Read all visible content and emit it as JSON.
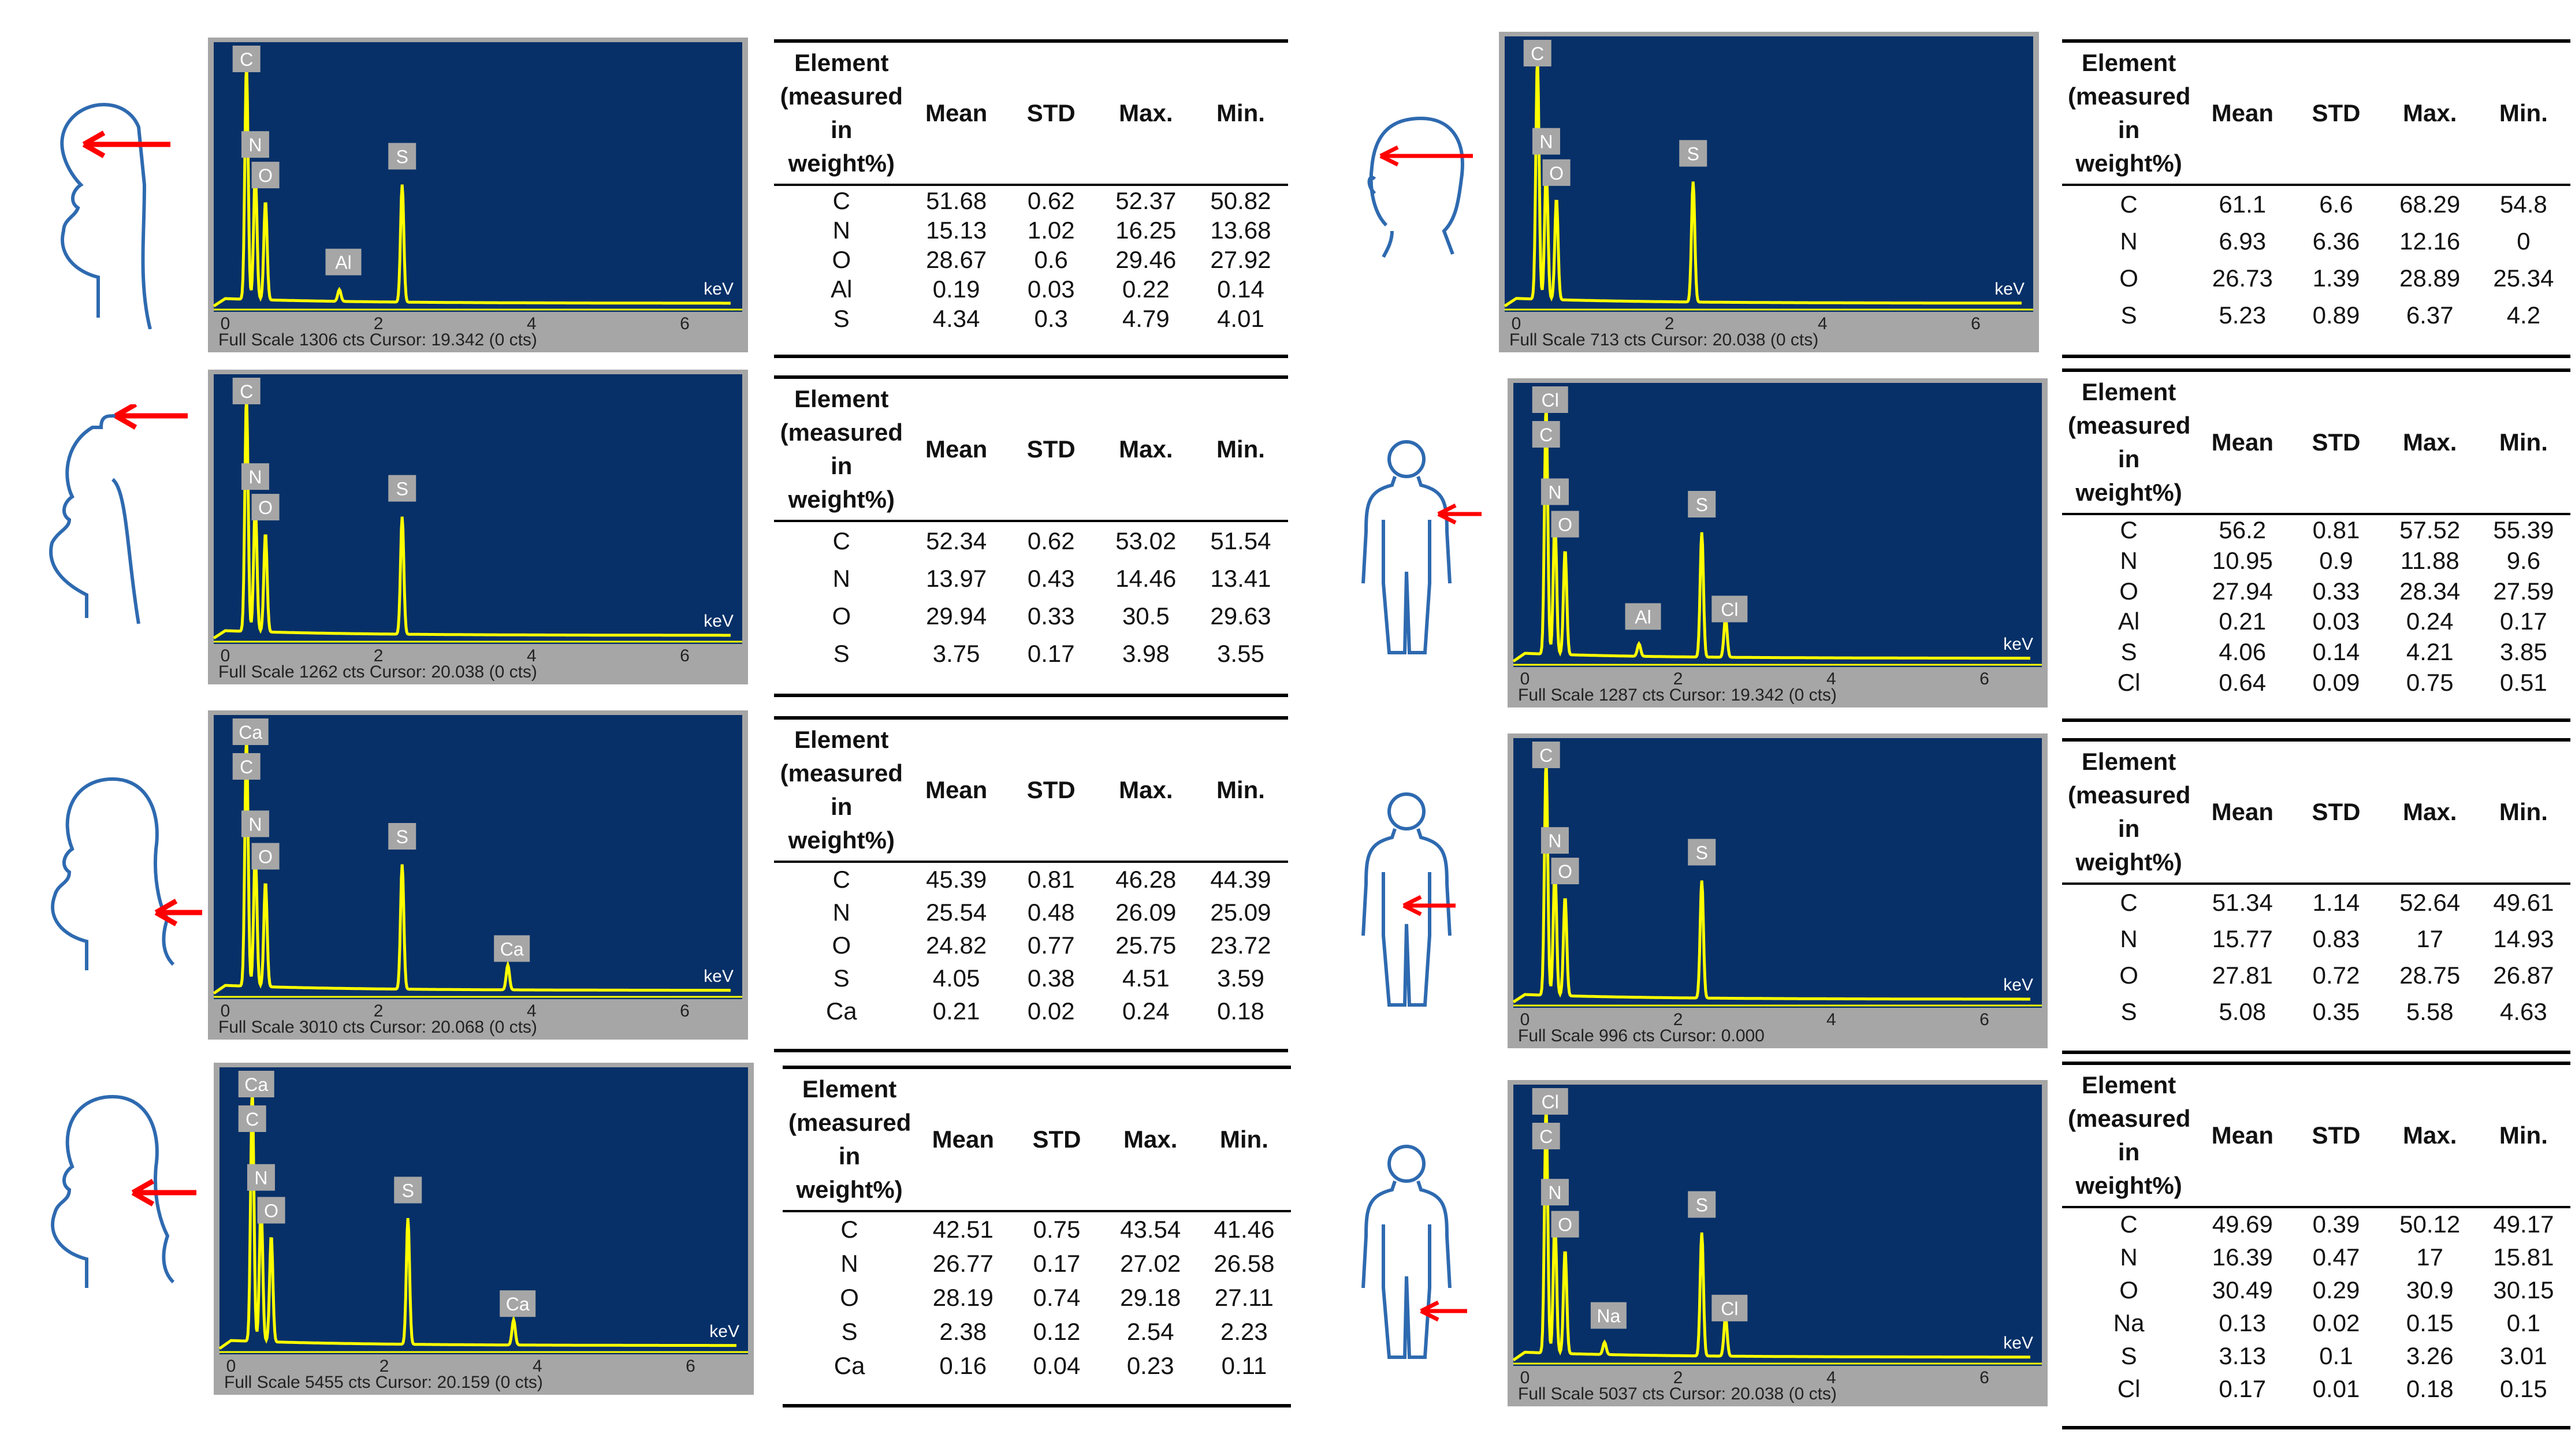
{
  "columns": [
    "Element (measured in weight%)",
    "Mean",
    "STD",
    "Max.",
    "Min."
  ],
  "panels": [
    {
      "spectrum": {
        "footer": "Full Scale 1306 cts Cursor: 19.342  (0 cts)",
        "unit": "keV",
        "axis_ticks": [
          "0",
          "2",
          "4",
          "6"
        ],
        "peak_labels": [
          "C",
          "N",
          "O",
          "Al",
          "S"
        ]
      },
      "rows": [
        {
          "el": "C",
          "mean": "51.68",
          "std": "0.62",
          "max": "52.37",
          "min": "50.82"
        },
        {
          "el": "N",
          "mean": "15.13",
          "std": "1.02",
          "max": "16.25",
          "min": "13.68"
        },
        {
          "el": "O",
          "mean": "28.67",
          "std": "0.6",
          "max": "29.46",
          "min": "27.92"
        },
        {
          "el": "Al",
          "mean": "0.19",
          "std": "0.03",
          "max": "0.22",
          "min": "0.14"
        },
        {
          "el": "S",
          "mean": "4.34",
          "std": "0.3",
          "max": "4.79",
          "min": "4.01"
        }
      ]
    },
    {
      "spectrum": {
        "footer": "Full Scale 1262 cts Cursor: 20.038  (0 cts)",
        "unit": "keV",
        "axis_ticks": [
          "0",
          "2",
          "4",
          "6"
        ],
        "peak_labels": [
          "C",
          "N",
          "O",
          "S"
        ]
      },
      "rows": [
        {
          "el": "C",
          "mean": "52.34",
          "std": "0.62",
          "max": "53.02",
          "min": "51.54"
        },
        {
          "el": "N",
          "mean": "13.97",
          "std": "0.43",
          "max": "14.46",
          "min": "13.41"
        },
        {
          "el": "O",
          "mean": "29.94",
          "std": "0.33",
          "max": "30.5",
          "min": "29.63"
        },
        {
          "el": "S",
          "mean": "3.75",
          "std": "0.17",
          "max": "3.98",
          "min": "3.55"
        }
      ]
    },
    {
      "spectrum": {
        "footer": "Full Scale 3010 cts Cursor: 20.068  (0 cts)",
        "unit": "keV",
        "axis_ticks": [
          "0",
          "2",
          "4",
          "6"
        ],
        "peak_labels": [
          "Ca",
          "C",
          "N",
          "O",
          "S",
          "Ca"
        ]
      },
      "rows": [
        {
          "el": "C",
          "mean": "45.39",
          "std": "0.81",
          "max": "46.28",
          "min": "44.39"
        },
        {
          "el": "N",
          "mean": "25.54",
          "std": "0.48",
          "max": "26.09",
          "min": "25.09"
        },
        {
          "el": "O",
          "mean": "24.82",
          "std": "0.77",
          "max": "25.75",
          "min": "23.72"
        },
        {
          "el": "S",
          "mean": "4.05",
          "std": "0.38",
          "max": "4.51",
          "min": "3.59"
        },
        {
          "el": "Ca",
          "mean": "0.21",
          "std": "0.02",
          "max": "0.24",
          "min": "0.18"
        }
      ]
    },
    {
      "spectrum": {
        "footer": "Full Scale 5455 cts Cursor: 20.159  (0 cts)",
        "unit": "keV",
        "axis_ticks": [
          "0",
          "2",
          "4",
          "6"
        ],
        "peak_labels": [
          "Ca",
          "C",
          "N",
          "O",
          "S",
          "Ca"
        ]
      },
      "rows": [
        {
          "el": "C",
          "mean": "42.51",
          "std": "0.75",
          "max": "43.54",
          "min": "41.46"
        },
        {
          "el": "N",
          "mean": "26.77",
          "std": "0.17",
          "max": "27.02",
          "min": "26.58"
        },
        {
          "el": "O",
          "mean": "28.19",
          "std": "0.74",
          "max": "29.18",
          "min": "27.11"
        },
        {
          "el": "S",
          "mean": "2.38",
          "std": "0.12",
          "max": "2.54",
          "min": "2.23"
        },
        {
          "el": "Ca",
          "mean": "0.16",
          "std": "0.04",
          "max": "0.23",
          "min": "0.11"
        }
      ]
    },
    {
      "spectrum": {
        "footer": "Full Scale 713 cts Cursor: 20.038  (0 cts)",
        "unit": "keV",
        "axis_ticks": [
          "0",
          "2",
          "4",
          "6"
        ],
        "peak_labels": [
          "C",
          "N",
          "O",
          "S"
        ]
      },
      "rows": [
        {
          "el": "C",
          "mean": "61.1",
          "std": "6.6",
          "max": "68.29",
          "min": "54.8"
        },
        {
          "el": "N",
          "mean": "6.93",
          "std": "6.36",
          "max": "12.16",
          "min": "0"
        },
        {
          "el": "O",
          "mean": "26.73",
          "std": "1.39",
          "max": "28.89",
          "min": "25.34"
        },
        {
          "el": "S",
          "mean": "5.23",
          "std": "0.89",
          "max": "6.37",
          "min": "4.2"
        }
      ]
    },
    {
      "spectrum": {
        "footer": "Full Scale 1287 cts Cursor: 19.342  (0 cts)",
        "unit": "keV",
        "axis_ticks": [
          "0",
          "2",
          "4",
          "6"
        ],
        "peak_labels": [
          "Cl",
          "C",
          "N",
          "O",
          "Al",
          "S",
          "Cl"
        ]
      },
      "rows": [
        {
          "el": "C",
          "mean": "56.2",
          "std": "0.81",
          "max": "57.52",
          "min": "55.39"
        },
        {
          "el": "N",
          "mean": "10.95",
          "std": "0.9",
          "max": "11.88",
          "min": "9.6"
        },
        {
          "el": "O",
          "mean": "27.94",
          "std": "0.33",
          "max": "28.34",
          "min": "27.59"
        },
        {
          "el": "Al",
          "mean": "0.21",
          "std": "0.03",
          "max": "0.24",
          "min": "0.17"
        },
        {
          "el": "S",
          "mean": "4.06",
          "std": "0.14",
          "max": "4.21",
          "min": "3.85"
        },
        {
          "el": "Cl",
          "mean": "0.64",
          "std": "0.09",
          "max": "0.75",
          "min": "0.51"
        }
      ]
    },
    {
      "spectrum": {
        "footer": "Full Scale 996 cts Cursor: 0.000",
        "unit": "keV",
        "axis_ticks": [
          "0",
          "2",
          "4",
          "6"
        ],
        "peak_labels": [
          "C",
          "N",
          "O",
          "S"
        ]
      },
      "rows": [
        {
          "el": "C",
          "mean": "51.34",
          "std": "1.14",
          "max": "52.64",
          "min": "49.61"
        },
        {
          "el": "N",
          "mean": "15.77",
          "std": "0.83",
          "max": "17",
          "min": "14.93"
        },
        {
          "el": "O",
          "mean": "27.81",
          "std": "0.72",
          "max": "28.75",
          "min": "26.87"
        },
        {
          "el": "S",
          "mean": "5.08",
          "std": "0.35",
          "max": "5.58",
          "min": "4.63"
        }
      ]
    },
    {
      "spectrum": {
        "footer": "Full Scale 5037 cts Cursor: 20.038  (0 cts)",
        "unit": "keV",
        "axis_ticks": [
          "0",
          "2",
          "4",
          "6"
        ],
        "peak_labels": [
          "Cl",
          "C",
          "N",
          "O",
          "Na",
          "S",
          "Cl"
        ]
      },
      "rows": [
        {
          "el": "C",
          "mean": "49.69",
          "std": "0.39",
          "max": "50.12",
          "min": "49.17"
        },
        {
          "el": "N",
          "mean": "16.39",
          "std": "0.47",
          "max": "17",
          "min": "15.81"
        },
        {
          "el": "O",
          "mean": "30.49",
          "std": "0.29",
          "max": "30.9",
          "min": "30.15"
        },
        {
          "el": "Na",
          "mean": "0.13",
          "std": "0.02",
          "max": "0.15",
          "min": "0.1"
        },
        {
          "el": "S",
          "mean": "3.13",
          "std": "0.1",
          "max": "3.26",
          "min": "3.01"
        },
        {
          "el": "Cl",
          "mean": "0.17",
          "std": "0.01",
          "max": "0.18",
          "min": "0.15"
        }
      ]
    }
  ],
  "colors": {
    "plot_bg": "#073068",
    "trace": "#ffff00",
    "arrow": "#ff0000",
    "outline": "#2e6ab0",
    "frame": "#a6a6a6"
  }
}
